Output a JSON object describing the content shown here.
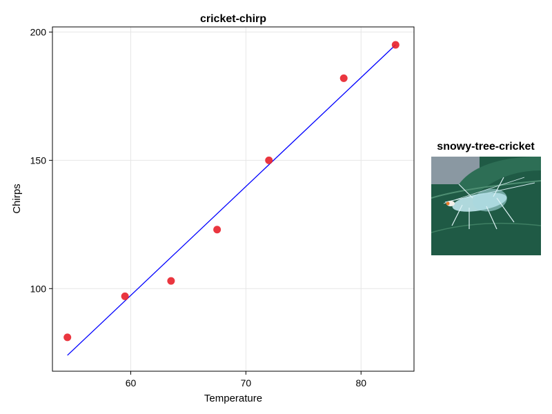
{
  "chart_data": {
    "type": "scatter",
    "title": "cricket-chirp",
    "xlabel": "Temperature",
    "ylabel": "Chirps",
    "xlim": [
      53.2,
      84.6
    ],
    "ylim": [
      67.8,
      202.0
    ],
    "xticks": [
      60,
      70,
      80
    ],
    "yticks": [
      100,
      150,
      200
    ],
    "grid": true,
    "points": {
      "color": "#e8202a",
      "x": [
        54.5,
        59.5,
        63.5,
        67.5,
        72.0,
        78.5,
        83.0
      ],
      "y": [
        81,
        97,
        103,
        123,
        150,
        182,
        195
      ]
    },
    "fit_line": {
      "color": "#0000ff",
      "x": [
        54.5,
        83.0
      ],
      "y": [
        74.0,
        195.0
      ]
    }
  },
  "image_panel": {
    "title": "snowy-tree-cricket",
    "alt": "snowy tree cricket on a green leaf"
  }
}
